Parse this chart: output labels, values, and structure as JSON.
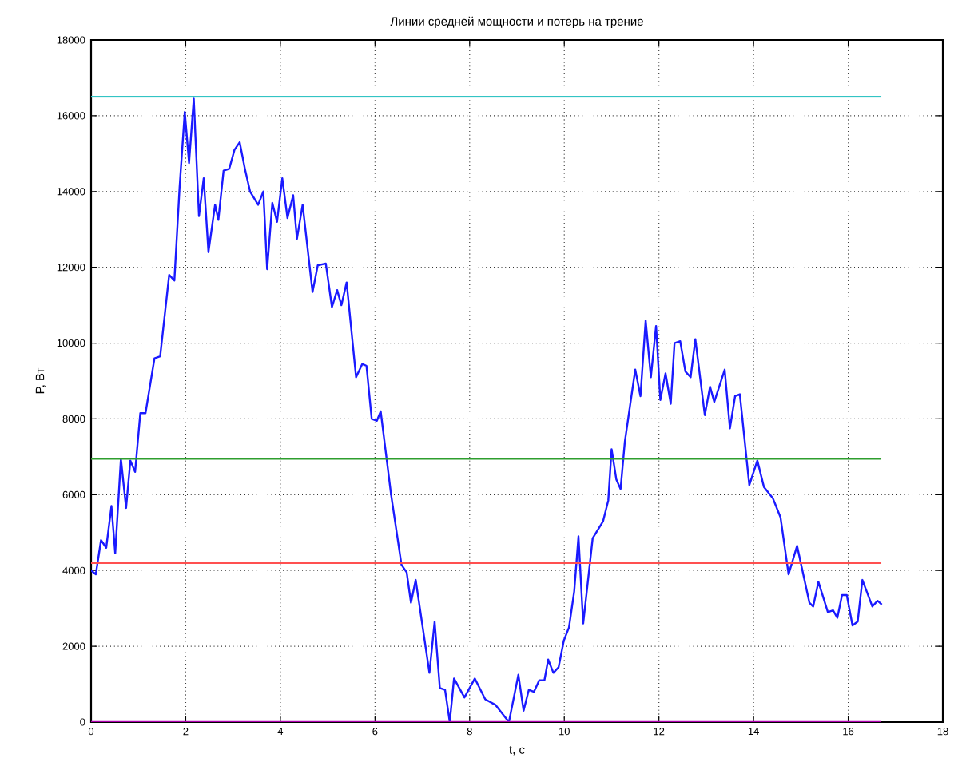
{
  "chart_data": {
    "type": "line",
    "title": "Линии средней мощности и потерь на трение",
    "xlabel": "t, с",
    "ylabel": "P, Вт",
    "xlim": [
      0,
      18
    ],
    "xticks": [
      0,
      2,
      4,
      6,
      8,
      10,
      12,
      14,
      16,
      18
    ],
    "ylim": [
      0,
      18000
    ],
    "yticks": [
      0,
      2000,
      4000,
      6000,
      8000,
      10000,
      12000,
      14000,
      16000,
      18000
    ],
    "grid": true,
    "series": [
      {
        "color": "#1a1aff",
        "x": [
          0,
          0.1,
          0.21,
          0.32,
          0.43,
          0.51,
          0.63,
          0.74,
          0.83,
          0.93,
          1.04,
          1.15,
          1.34,
          1.46,
          1.65,
          1.76,
          1.87,
          1.98,
          2.07,
          2.17,
          2.28,
          2.38,
          2.48,
          2.62,
          2.69,
          2.8,
          2.92,
          3.03,
          3.14,
          3.25,
          3.36,
          3.53,
          3.64,
          3.72,
          3.83,
          3.93,
          4.04,
          4.15,
          4.27,
          4.35,
          4.47,
          4.68,
          4.79,
          4.96,
          5.09,
          5.2,
          5.29,
          5.4,
          5.6,
          5.73,
          5.82,
          5.93,
          6.04,
          6.12,
          6.34,
          6.56,
          6.67,
          6.76,
          6.86,
          7.15,
          7.26,
          7.37,
          7.48,
          7.58,
          7.67,
          7.89,
          8.11,
          8.33,
          8.55,
          8.83,
          9.03,
          9.14,
          9.25,
          9.36,
          9.47,
          9.58,
          9.66,
          9.77,
          9.88,
          9.99,
          10.1,
          10.21,
          10.3,
          10.4,
          10.6,
          10.82,
          10.93,
          11.0,
          11.1,
          11.19,
          11.28,
          11.5,
          11.61,
          11.72,
          11.83,
          11.94,
          12.03,
          12.14,
          12.25,
          12.33,
          12.45,
          12.56,
          12.67,
          12.77,
          12.97,
          13.08,
          13.17,
          13.39,
          13.5,
          13.61,
          13.71,
          13.91,
          14.08,
          14.22,
          14.41,
          14.57,
          14.74,
          14.92,
          15.18,
          15.26,
          15.37,
          15.57,
          15.68,
          15.77,
          15.87,
          15.97,
          16.09,
          16.2,
          16.3,
          16.51,
          16.62,
          16.71
        ],
        "values": [
          4000,
          3900,
          4800,
          4600,
          5700,
          4450,
          6950,
          5650,
          6900,
          6600,
          8150,
          8150,
          9600,
          9650,
          11800,
          11650,
          14100,
          16100,
          14750,
          16450,
          13350,
          14350,
          12400,
          13650,
          13250,
          14550,
          14600,
          15100,
          15300,
          14600,
          14000,
          13650,
          14000,
          11950,
          13700,
          13200,
          14350,
          13300,
          13900,
          12750,
          13650,
          11350,
          12050,
          12100,
          10950,
          11400,
          11000,
          11600,
          9100,
          9450,
          9400,
          8000,
          7950,
          8200,
          6000,
          4150,
          3950,
          3150,
          3750,
          1300,
          2650,
          900,
          850,
          0,
          1150,
          650,
          1150,
          600,
          450,
          0,
          1250,
          300,
          850,
          800,
          1100,
          1100,
          1650,
          1300,
          1450,
          2150,
          2500,
          3450,
          4900,
          2600,
          4850,
          5300,
          5850,
          7200,
          6400,
          6150,
          7400,
          9300,
          8600,
          10600,
          9100,
          10450,
          8500,
          9200,
          8400,
          10000,
          10050,
          9250,
          9100,
          10100,
          8100,
          8850,
          8450,
          9300,
          7750,
          8600,
          8650,
          6250,
          6900,
          6200,
          5900,
          5400,
          3900,
          4650,
          3150,
          3050,
          3700,
          2900,
          2950,
          2750,
          3350,
          3350,
          2550,
          2650,
          3750,
          3050,
          3200,
          3100
        ]
      },
      {
        "color": "#33c4c4",
        "x": [
          0,
          16.7
        ],
        "values": [
          16500,
          16500
        ]
      },
      {
        "color": "#2e9e2e",
        "x": [
          0,
          16.7
        ],
        "values": [
          6950,
          6950
        ]
      },
      {
        "color": "#ff5050",
        "x": [
          0,
          16.7
        ],
        "values": [
          4200,
          4200
        ]
      },
      {
        "color": "#b000b0",
        "x": [
          0,
          16.7
        ],
        "values": [
          0,
          0
        ]
      }
    ]
  }
}
